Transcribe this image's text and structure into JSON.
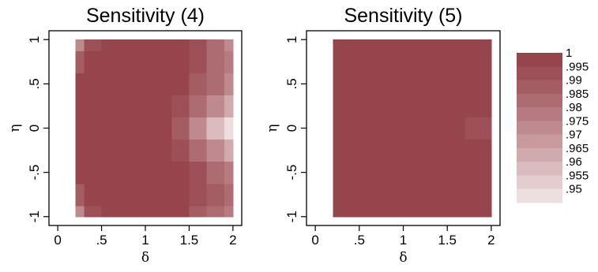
{
  "chart_data": [
    {
      "type": "heatmap",
      "title": "Sensitivity (4)",
      "xlabel": "δ",
      "ylabel": "η",
      "x_ticks": [
        "0",
        ".5",
        "1",
        "1.5",
        "2"
      ],
      "y_ticks": [
        "-1",
        "-.5",
        "0",
        ".5",
        "1"
      ],
      "xlim": [
        -0.1,
        2.1
      ],
      "ylim": [
        -1.1,
        1.1
      ],
      "x": [
        0.2,
        0.4,
        0.6,
        0.8,
        1.0,
        1.2,
        1.4,
        1.6,
        1.8,
        2.0
      ],
      "y": [
        -1.0,
        -0.75,
        -0.5,
        -0.25,
        0.0,
        0.25,
        0.5,
        0.75,
        1.0
      ],
      "z": [
        [
          0.975,
          0.995,
          1,
          1,
          1,
          1,
          1,
          0.99,
          0.985,
          0.98
        ],
        [
          0.99,
          1,
          1,
          1,
          1,
          1,
          1,
          0.995,
          0.99,
          0.985
        ],
        [
          1,
          1,
          1,
          1,
          1,
          1,
          1,
          0.995,
          0.985,
          0.98
        ],
        [
          1,
          1,
          1,
          1,
          1,
          1,
          0.995,
          0.985,
          0.975,
          0.965
        ],
        [
          1,
          1,
          1,
          1,
          1,
          1,
          0.99,
          0.975,
          0.962,
          0.95
        ],
        [
          1,
          1,
          1,
          1,
          1,
          1,
          0.995,
          0.985,
          0.975,
          0.965
        ],
        [
          1,
          1,
          1,
          1,
          1,
          1,
          1,
          0.99,
          0.985,
          0.975
        ],
        [
          0.99,
          1,
          1,
          1,
          1,
          1,
          1,
          0.995,
          0.985,
          0.98
        ],
        [
          0.975,
          0.995,
          1,
          1,
          1,
          1,
          1,
          0.995,
          0.985,
          0.975
        ]
      ]
    },
    {
      "type": "heatmap",
      "title": "Sensitivity (5)",
      "xlabel": "δ",
      "ylabel": "η",
      "x_ticks": [
        "0",
        ".5",
        "1",
        "1.5",
        "2"
      ],
      "y_ticks": [
        "-1",
        "-.5",
        "0",
        ".5",
        "1"
      ],
      "xlim": [
        -0.1,
        2.1
      ],
      "ylim": [
        -1.1,
        1.1
      ],
      "x": [
        0.2,
        0.4,
        0.6,
        0.8,
        1.0,
        1.2,
        1.4,
        1.6,
        1.8,
        2.0
      ],
      "y": [
        -1.0,
        -0.75,
        -0.5,
        -0.25,
        0.0,
        0.25,
        0.5,
        0.75,
        1.0
      ],
      "z": [
        [
          1,
          1,
          1,
          1,
          1,
          1,
          1,
          1,
          1,
          1
        ],
        [
          1,
          1,
          1,
          1,
          1,
          1,
          1,
          1,
          1,
          1
        ],
        [
          1,
          1,
          1,
          1,
          1,
          1,
          1,
          1,
          1,
          1
        ],
        [
          1,
          1,
          1,
          1,
          1,
          1,
          1,
          1,
          1,
          1
        ],
        [
          1,
          1,
          1,
          1,
          1,
          1,
          1,
          1,
          0.995,
          0.995
        ],
        [
          1,
          1,
          1,
          1,
          1,
          1,
          1,
          1,
          1,
          1
        ],
        [
          1,
          1,
          1,
          1,
          1,
          1,
          1,
          1,
          1,
          1
        ],
        [
          1,
          1,
          1,
          1,
          1,
          1,
          1,
          1,
          1,
          1
        ],
        [
          1,
          1,
          1,
          1,
          1,
          1,
          1,
          1,
          1,
          1
        ]
      ]
    }
  ],
  "legend": {
    "labels": [
      "1",
      ".995",
      ".99",
      ".985",
      ".98",
      ".975",
      ".97",
      ".965",
      ".96",
      ".955",
      ".95"
    ],
    "levels": [
      1,
      0.995,
      0.99,
      0.985,
      0.98,
      0.975,
      0.97,
      0.965,
      0.96,
      0.955,
      0.95
    ],
    "colors": [
      "#96454d",
      "#9d5058",
      "#a55d64",
      "#ad6b72",
      "#b67a80",
      "#bf8a8f",
      "#c8999d",
      "#d1aaad",
      "#dabbbe",
      "#e3cdcf",
      "#eddfe0"
    ]
  },
  "colors": {
    "plot_background": "#ffffff",
    "frame": "#000000"
  }
}
